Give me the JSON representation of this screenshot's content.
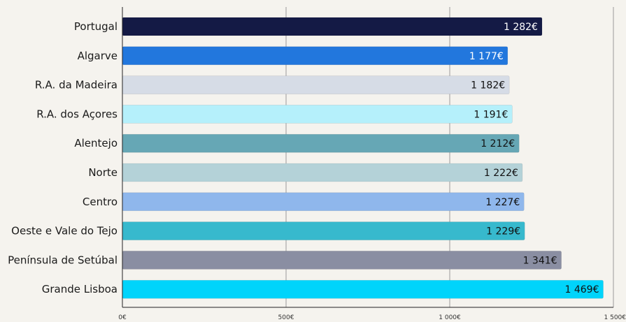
{
  "chart_data": {
    "type": "bar",
    "orientation": "horizontal",
    "categories": [
      "Portugal",
      "Algarve",
      "R.A.  da Madeira",
      "R.A.  dos Açores",
      "Alentejo",
      "Norte",
      "Centro",
      "Oeste e Vale do Tejo",
      "Península de Setúbal",
      "Grande Lisboa"
    ],
    "values": [
      1282,
      1177,
      1182,
      1191,
      1212,
      1222,
      1227,
      1229,
      1341,
      1469
    ],
    "value_labels": [
      "1 282€",
      "1 177€",
      "1 182€",
      "1 191€",
      "1 212€",
      "1 222€",
      "1 227€",
      "1 229€",
      "1 341€",
      "1 469€"
    ],
    "colors": [
      "#141a45",
      "#2277dd",
      "#d6dce6",
      "#b5f0fb",
      "#66a7b5",
      "#b4d2d8",
      "#8fb7ec",
      "#37b9cd",
      "#8a8ea2",
      "#00d4fb"
    ],
    "label_colors": [
      "#ffffff",
      "#ffffff",
      "#111111",
      "#111111",
      "#111111",
      "#111111",
      "#111111",
      "#111111",
      "#111111",
      "#111111"
    ],
    "xlim": [
      0,
      1500
    ],
    "x_ticks": [
      0,
      500,
      1000,
      1500
    ],
    "x_tick_labels": [
      "0€",
      "500€",
      "1 000€",
      "1 500€"
    ],
    "grid": true,
    "title": "",
    "xlabel": "",
    "ylabel": ""
  }
}
